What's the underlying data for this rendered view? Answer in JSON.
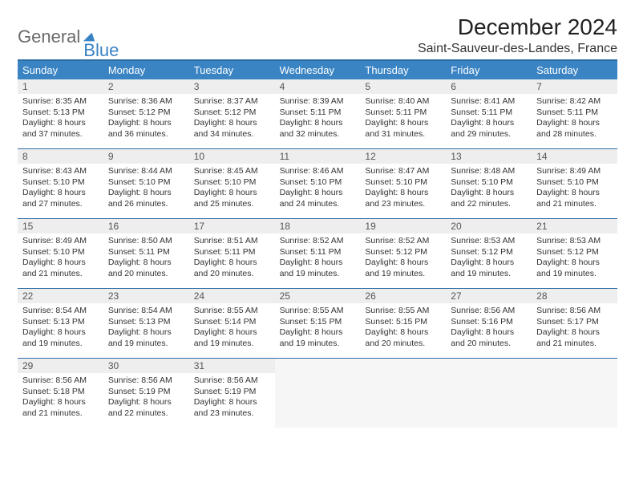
{
  "logo": {
    "general": "General",
    "blue": "Blue"
  },
  "title": "December 2024",
  "subtitle": "Saint-Sauveur-des-Landes, France",
  "colors": {
    "header_bg": "#3a84c4",
    "header_border": "#2e6da4",
    "daynum_bg": "#eeeeee",
    "empty_bg": "#f6f6f6",
    "text": "#333333"
  },
  "dayNames": [
    "Sunday",
    "Monday",
    "Tuesday",
    "Wednesday",
    "Thursday",
    "Friday",
    "Saturday"
  ],
  "weeks": [
    [
      {
        "n": "1",
        "sr": "8:35 AM",
        "ss": "5:13 PM",
        "dl": "8 hours and 37 minutes."
      },
      {
        "n": "2",
        "sr": "8:36 AM",
        "ss": "5:12 PM",
        "dl": "8 hours and 36 minutes."
      },
      {
        "n": "3",
        "sr": "8:37 AM",
        "ss": "5:12 PM",
        "dl": "8 hours and 34 minutes."
      },
      {
        "n": "4",
        "sr": "8:39 AM",
        "ss": "5:11 PM",
        "dl": "8 hours and 32 minutes."
      },
      {
        "n": "5",
        "sr": "8:40 AM",
        "ss": "5:11 PM",
        "dl": "8 hours and 31 minutes."
      },
      {
        "n": "6",
        "sr": "8:41 AM",
        "ss": "5:11 PM",
        "dl": "8 hours and 29 minutes."
      },
      {
        "n": "7",
        "sr": "8:42 AM",
        "ss": "5:11 PM",
        "dl": "8 hours and 28 minutes."
      }
    ],
    [
      {
        "n": "8",
        "sr": "8:43 AM",
        "ss": "5:10 PM",
        "dl": "8 hours and 27 minutes."
      },
      {
        "n": "9",
        "sr": "8:44 AM",
        "ss": "5:10 PM",
        "dl": "8 hours and 26 minutes."
      },
      {
        "n": "10",
        "sr": "8:45 AM",
        "ss": "5:10 PM",
        "dl": "8 hours and 25 minutes."
      },
      {
        "n": "11",
        "sr": "8:46 AM",
        "ss": "5:10 PM",
        "dl": "8 hours and 24 minutes."
      },
      {
        "n": "12",
        "sr": "8:47 AM",
        "ss": "5:10 PM",
        "dl": "8 hours and 23 minutes."
      },
      {
        "n": "13",
        "sr": "8:48 AM",
        "ss": "5:10 PM",
        "dl": "8 hours and 22 minutes."
      },
      {
        "n": "14",
        "sr": "8:49 AM",
        "ss": "5:10 PM",
        "dl": "8 hours and 21 minutes."
      }
    ],
    [
      {
        "n": "15",
        "sr": "8:49 AM",
        "ss": "5:10 PM",
        "dl": "8 hours and 21 minutes."
      },
      {
        "n": "16",
        "sr": "8:50 AM",
        "ss": "5:11 PM",
        "dl": "8 hours and 20 minutes."
      },
      {
        "n": "17",
        "sr": "8:51 AM",
        "ss": "5:11 PM",
        "dl": "8 hours and 20 minutes."
      },
      {
        "n": "18",
        "sr": "8:52 AM",
        "ss": "5:11 PM",
        "dl": "8 hours and 19 minutes."
      },
      {
        "n": "19",
        "sr": "8:52 AM",
        "ss": "5:12 PM",
        "dl": "8 hours and 19 minutes."
      },
      {
        "n": "20",
        "sr": "8:53 AM",
        "ss": "5:12 PM",
        "dl": "8 hours and 19 minutes."
      },
      {
        "n": "21",
        "sr": "8:53 AM",
        "ss": "5:12 PM",
        "dl": "8 hours and 19 minutes."
      }
    ],
    [
      {
        "n": "22",
        "sr": "8:54 AM",
        "ss": "5:13 PM",
        "dl": "8 hours and 19 minutes."
      },
      {
        "n": "23",
        "sr": "8:54 AM",
        "ss": "5:13 PM",
        "dl": "8 hours and 19 minutes."
      },
      {
        "n": "24",
        "sr": "8:55 AM",
        "ss": "5:14 PM",
        "dl": "8 hours and 19 minutes."
      },
      {
        "n": "25",
        "sr": "8:55 AM",
        "ss": "5:15 PM",
        "dl": "8 hours and 19 minutes."
      },
      {
        "n": "26",
        "sr": "8:55 AM",
        "ss": "5:15 PM",
        "dl": "8 hours and 20 minutes."
      },
      {
        "n": "27",
        "sr": "8:56 AM",
        "ss": "5:16 PM",
        "dl": "8 hours and 20 minutes."
      },
      {
        "n": "28",
        "sr": "8:56 AM",
        "ss": "5:17 PM",
        "dl": "8 hours and 21 minutes."
      }
    ],
    [
      {
        "n": "29",
        "sr": "8:56 AM",
        "ss": "5:18 PM",
        "dl": "8 hours and 21 minutes."
      },
      {
        "n": "30",
        "sr": "8:56 AM",
        "ss": "5:19 PM",
        "dl": "8 hours and 22 minutes."
      },
      {
        "n": "31",
        "sr": "8:56 AM",
        "ss": "5:19 PM",
        "dl": "8 hours and 23 minutes."
      },
      null,
      null,
      null,
      null
    ]
  ],
  "labels": {
    "sunrise": "Sunrise:",
    "sunset": "Sunset:",
    "daylight": "Daylight:"
  }
}
